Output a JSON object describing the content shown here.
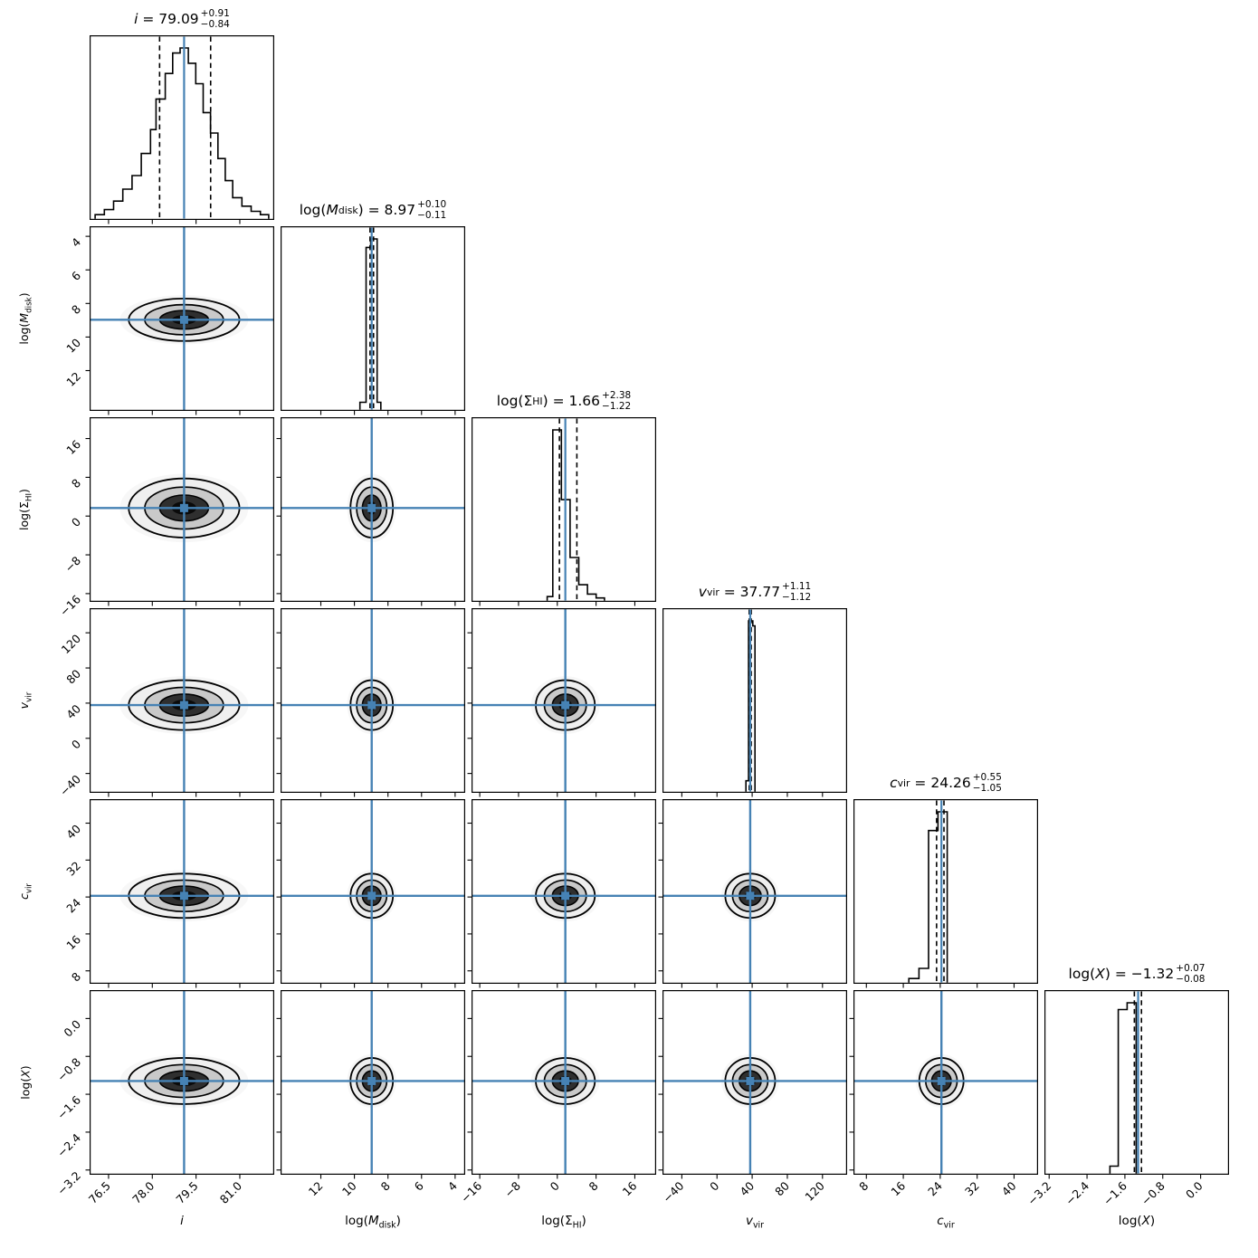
{
  "figure": {
    "background": "#ffffff",
    "kind": "corner plot (posterior distributions)"
  },
  "chart_data": {
    "type": "corner_plot",
    "n_params": 6,
    "truth_color": "#4682B4",
    "line_color": "#000000",
    "contour_levels": [
      1.0,
      0.71,
      0.44,
      0.22
    ],
    "contour_fills": [
      "#efefef",
      "#c9c9c9",
      "#2f2f2f",
      "#0a0a0a"
    ],
    "contour_halo_fill": "#f7f7f7",
    "parameters": [
      {
        "id": "i",
        "label": {
          "prefix": "",
          "var": "i",
          "sub": "",
          "suffix": "",
          "italic": true
        },
        "title_value": "79.09",
        "err_plus": "+0.91",
        "err_minus": "−0.84",
        "truth": 79.09,
        "quantiles": [
          78.25,
          80.0
        ],
        "range": [
          75.85,
          82.18
        ],
        "ticks": [
          76.5,
          78.0,
          79.5,
          81.0
        ],
        "tick_labels": [
          "76.5",
          "78.0",
          "79.5",
          "81.0"
        ],
        "hist_steps": [
          [
            0.03,
            0.02
          ],
          [
            0.08,
            0.05
          ],
          [
            0.13,
            0.1
          ],
          [
            0.18,
            0.17
          ],
          [
            0.23,
            0.25
          ],
          [
            0.28,
            0.38
          ],
          [
            0.33,
            0.52
          ],
          [
            0.36,
            0.7
          ],
          [
            0.41,
            0.85
          ],
          [
            0.45,
            0.97
          ],
          [
            0.49,
            1.0
          ],
          [
            0.535,
            0.91
          ],
          [
            0.575,
            0.79
          ],
          [
            0.615,
            0.62
          ],
          [
            0.655,
            0.5
          ],
          [
            0.695,
            0.35
          ],
          [
            0.735,
            0.22
          ],
          [
            0.775,
            0.12
          ],
          [
            0.825,
            0.07
          ],
          [
            0.875,
            0.04
          ],
          [
            0.925,
            0.02
          ],
          [
            0.97,
            0.0
          ]
        ],
        "contour_halfwidth_frac": 0.3
      },
      {
        "id": "log-mdisk",
        "label": {
          "prefix": "log(",
          "var": "M",
          "sub": "disk",
          "suffix": ")",
          "italic": true
        },
        "title_value": "8.97",
        "err_plus": "+0.10",
        "err_minus": "−0.11",
        "truth": 8.97,
        "quantiles": [
          8.86,
          9.07
        ],
        "range": [
          14.4,
          3.4
        ],
        "ticks": [
          12,
          10,
          8,
          6,
          4
        ],
        "tick_labels": [
          "12",
          "10",
          "8",
          "6",
          "4"
        ],
        "hist_steps": [
          [
            0.43,
            0.04
          ],
          [
            0.463,
            0.95
          ],
          [
            0.488,
            1.0
          ],
          [
            0.523,
            0.04
          ],
          [
            0.543,
            0.0
          ]
        ],
        "contour_halfwidth_frac": 0.115
      },
      {
        "id": "log-sigma-hi",
        "label": {
          "prefix": "log(",
          "var": "Σ",
          "sub": "HI",
          "suffix": ")",
          "italic": false
        },
        "title_value": "1.66",
        "err_plus": "+2.38",
        "err_minus": "−1.22",
        "truth": 1.66,
        "quantiles": [
          0.44,
          4.04
        ],
        "range": [
          -17.7,
          20.4
        ],
        "ticks": [
          -16,
          -8,
          0,
          8,
          16
        ],
        "tick_labels": [
          "−16",
          "−8",
          "0",
          "8",
          "16"
        ],
        "hist_steps": [
          [
            0.41,
            0.02
          ],
          [
            0.44,
            1.0
          ],
          [
            0.487,
            0.59
          ],
          [
            0.534,
            0.25
          ],
          [
            0.581,
            0.09
          ],
          [
            0.628,
            0.035
          ],
          [
            0.675,
            0.012
          ],
          [
            0.72,
            0.0
          ]
        ],
        "contour_halfwidth_frac": 0.16
      },
      {
        "id": "v-vir",
        "label": {
          "prefix": "",
          "var": "v",
          "sub": "vir",
          "suffix": "",
          "italic": true
        },
        "title_value": "37.77",
        "err_plus": "+1.11",
        "err_minus": "−1.12",
        "truth": 37.77,
        "quantiles": [
          36.65,
          38.88
        ],
        "range": [
          -62,
          148
        ],
        "ticks": [
          -40,
          0,
          40,
          80,
          120
        ],
        "tick_labels": [
          "−40",
          "0",
          "40",
          "80",
          "120"
        ],
        "hist_steps": [
          [
            0.452,
            0.06
          ],
          [
            0.466,
            1.0
          ],
          [
            0.489,
            0.97
          ],
          [
            0.501,
            0.0
          ]
        ],
        "contour_halfwidth_frac": 0.135
      },
      {
        "id": "c-vir",
        "label": {
          "prefix": "",
          "var": "c",
          "sub": "vir",
          "suffix": "",
          "italic": true
        },
        "title_value": "24.26",
        "err_plus": "+0.55",
        "err_minus": "−1.05",
        "truth": 24.26,
        "quantiles": [
          23.21,
          24.81
        ],
        "range": [
          5.2,
          45.2
        ],
        "ticks": [
          8,
          16,
          24,
          32,
          40
        ],
        "tick_labels": [
          "8",
          "16",
          "24",
          "32",
          "40"
        ],
        "hist_steps": [
          [
            0.3,
            0.02
          ],
          [
            0.355,
            0.08
          ],
          [
            0.407,
            0.89
          ],
          [
            0.458,
            1.0
          ],
          [
            0.508,
            0.0
          ]
        ],
        "contour_halfwidth_frac": 0.12
      },
      {
        "id": "log-x",
        "label": {
          "prefix": "log(",
          "var": "X",
          "sub": "",
          "suffix": ")",
          "italic": true
        },
        "title_value": "−1.32",
        "err_plus": "+0.07",
        "err_minus": "−0.08",
        "truth": -1.32,
        "quantiles": [
          -1.4,
          -1.25
        ],
        "range": [
          -3.3,
          0.6
        ],
        "ticks": [
          -3.2,
          -2.4,
          -1.6,
          -0.8,
          0.0
        ],
        "tick_labels": [
          "−3.2",
          "−2.4",
          "−1.6",
          "−0.8",
          "0.0"
        ],
        "hist_steps": [
          [
            0.355,
            0.04
          ],
          [
            0.4,
            0.96
          ],
          [
            0.448,
            1.0
          ],
          [
            0.497,
            0.0
          ]
        ],
        "contour_halfwidth_frac": 0.125
      }
    ]
  }
}
